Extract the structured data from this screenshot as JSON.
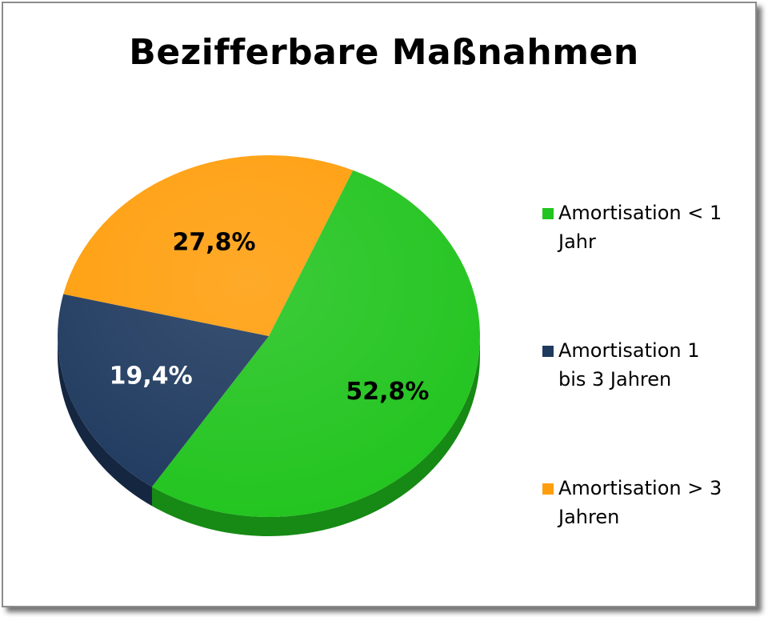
{
  "chart_data": {
    "type": "pie",
    "title": "Bezifferbare Maßnahmen",
    "slices": [
      {
        "name": "Amortisation < 1 Jahr",
        "value": 52.8,
        "label": "52,8%",
        "color": "#22c41f",
        "side_color": "#168a14",
        "label_color": "#000000"
      },
      {
        "name": "Amortisation 1 bis 3 Jahren",
        "value": 19.4,
        "label": "19,4%",
        "color": "#1f3a5f",
        "side_color": "#142640",
        "label_color": "#ffffff"
      },
      {
        "name": "Amortisation > 3 Jahren",
        "value": 27.8,
        "label": "27,8%",
        "color": "#ff9e0c",
        "side_color": "#c2750a",
        "label_color": "#000000"
      }
    ],
    "legend": {
      "position": "right",
      "entries": [
        {
          "line1": "Amortisation < 1",
          "line2": "Jahr",
          "color": "#22c41f"
        },
        {
          "line1": "Amortisation 1",
          "line2": "bis 3 Jahren",
          "color": "#1f3a5f"
        },
        {
          "line1": "Amortisation > 3",
          "line2": "Jahren",
          "color": "#ff9e0c"
        }
      ]
    }
  }
}
